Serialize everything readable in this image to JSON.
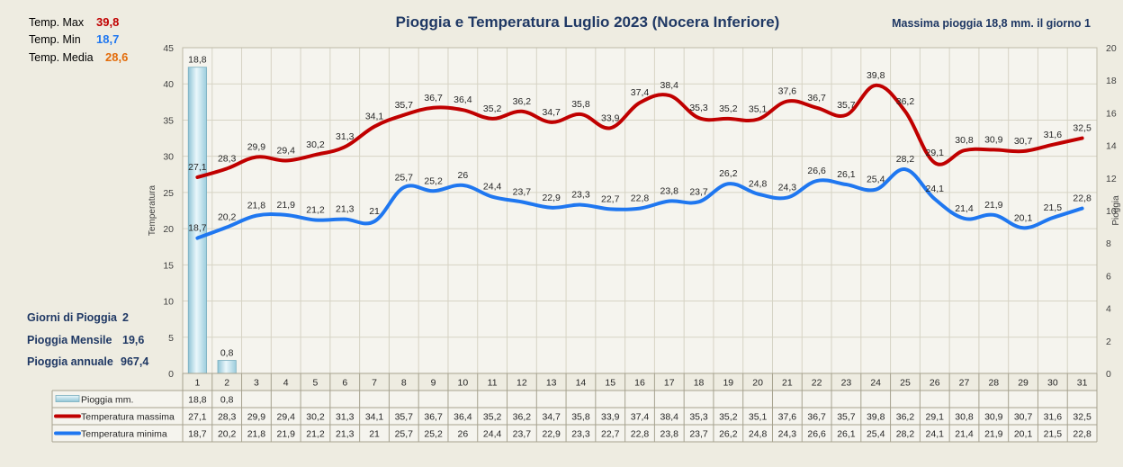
{
  "chart_data": {
    "type": "line",
    "title": "Pioggia e Temperatura Luglio 2023 (Nocera Inferiore)",
    "ylabel": "Temperatura",
    "y2label": "Pioggia",
    "ylim": [
      0,
      45
    ],
    "y2lim": [
      0,
      20
    ],
    "yticks": [
      "0",
      "5",
      "10",
      "15",
      "20",
      "25",
      "30",
      "35",
      "40",
      "45"
    ],
    "y2ticks": [
      "0",
      "2",
      "4",
      "6",
      "8",
      "10",
      "12",
      "14",
      "16",
      "18",
      "20"
    ],
    "categories": [
      "1",
      "2",
      "3",
      "4",
      "5",
      "6",
      "7",
      "8",
      "9",
      "10",
      "11",
      "12",
      "13",
      "14",
      "15",
      "16",
      "17",
      "18",
      "19",
      "20",
      "21",
      "22",
      "23",
      "24",
      "25",
      "26",
      "27",
      "28",
      "29",
      "30",
      "31"
    ],
    "series": [
      {
        "name": "Pioggia mm.",
        "type": "bar",
        "axis": "right",
        "values": [
          18.8,
          0.8,
          null,
          null,
          null,
          null,
          null,
          null,
          null,
          null,
          null,
          null,
          null,
          null,
          null,
          null,
          null,
          null,
          null,
          null,
          null,
          null,
          null,
          null,
          null,
          null,
          null,
          null,
          null,
          null,
          null
        ],
        "labels": [
          "18,8",
          "0,8",
          "",
          "",
          "",
          "",
          "",
          "",
          "",
          "",
          "",
          "",
          "",
          "",
          "",
          "",
          "",
          "",
          "",
          "",
          "",
          "",
          "",
          "",
          "",
          "",
          "",
          "",
          "",
          "",
          ""
        ],
        "color": "#bfe3ee"
      },
      {
        "name": "Temperatura massima",
        "type": "line",
        "axis": "left",
        "values": [
          27.1,
          28.3,
          29.9,
          29.4,
          30.2,
          31.3,
          34.1,
          35.7,
          36.7,
          36.4,
          35.2,
          36.2,
          34.7,
          35.8,
          33.9,
          37.4,
          38.4,
          35.3,
          35.2,
          35.1,
          37.6,
          36.7,
          35.7,
          39.8,
          36.2,
          29.1,
          30.8,
          30.9,
          30.7,
          31.6,
          32.5
        ],
        "labels": [
          "27,1",
          "28,3",
          "29,9",
          "29,4",
          "30,2",
          "31,3",
          "34,1",
          "35,7",
          "36,7",
          "36,4",
          "35,2",
          "36,2",
          "34,7",
          "35,8",
          "33,9",
          "37,4",
          "38,4",
          "35,3",
          "35,2",
          "35,1",
          "37,6",
          "36,7",
          "35,7",
          "39,8",
          "36,2",
          "29,1",
          "30,8",
          "30,9",
          "30,7",
          "31,6",
          "32,5"
        ],
        "color": "#c00000"
      },
      {
        "name": "Temperatura minima",
        "type": "line",
        "axis": "left",
        "values": [
          18.7,
          20.2,
          21.8,
          21.9,
          21.2,
          21.3,
          21,
          25.7,
          25.2,
          26,
          24.4,
          23.7,
          22.9,
          23.3,
          22.7,
          22.8,
          23.8,
          23.7,
          26.2,
          24.8,
          24.3,
          26.6,
          26.1,
          25.4,
          28.2,
          24.1,
          21.4,
          21.9,
          20.1,
          21.5,
          22.8
        ],
        "labels": [
          "18,7",
          "20,2",
          "21,8",
          "21,9",
          "21,2",
          "21,3",
          "21",
          "25,7",
          "25,2",
          "26",
          "24,4",
          "23,7",
          "22,9",
          "23,3",
          "22,7",
          "22,8",
          "23,8",
          "23,7",
          "26,2",
          "24,8",
          "24,3",
          "26,6",
          "26,1",
          "25,4",
          "28,2",
          "24,1",
          "21,4",
          "21,9",
          "20,1",
          "21,5",
          "22,8"
        ],
        "color": "#1f77f0"
      }
    ],
    "grid": true,
    "legend": "data-table"
  },
  "stats": {
    "max_label": "Temp. Max",
    "max_value": "39,8",
    "min_label": "Temp.  Min",
    "min_value": "18,7",
    "avg_label": "Temp. Media",
    "avg_value": "28,6",
    "max_rain_text": "Massima pioggia  18,8 mm. il giorno  1",
    "rain_days_label": "Giorni di Pioggia",
    "rain_days_value": "2",
    "monthly_rain_label": "Pioggia Mensile",
    "monthly_rain_value": "19,6",
    "annual_rain_label": "Pioggia annuale",
    "annual_rain_value": "967,4"
  },
  "colors": {
    "background": "#eeece1",
    "plot_background": "#f5f4ee",
    "grid": "#d6d3c4",
    "navy": "#1f3864",
    "max_red": "#c00000",
    "min_blue": "#1f77f0",
    "avg_orange": "#e36c0a"
  }
}
